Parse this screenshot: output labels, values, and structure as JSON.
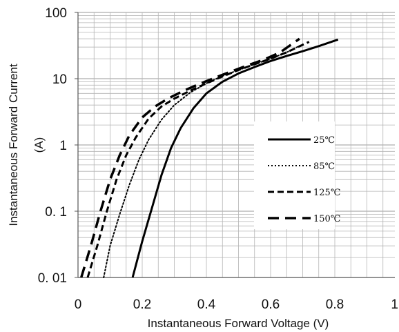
{
  "chart_data": {
    "type": "line",
    "xlabel": "Instantaneous Forward Voltage (V)",
    "ylabel_line1": "Instantaneous Forward Current",
    "ylabel_line2": "(A)",
    "xlim": [
      0,
      1
    ],
    "ylim": [
      0.01,
      100
    ],
    "yscale": "log",
    "grid": true,
    "legend_position": "center-right",
    "x_ticks": [
      {
        "value": 0,
        "label": "0"
      },
      {
        "value": 0.2,
        "label": "0.2"
      },
      {
        "value": 0.4,
        "label": "0.4"
      },
      {
        "value": 0.6,
        "label": "0.6"
      },
      {
        "value": 0.8,
        "label": "0.8"
      },
      {
        "value": 1,
        "label": "1"
      }
    ],
    "y_ticks": [
      {
        "value": 0.01,
        "label": "0. 01"
      },
      {
        "value": 0.1,
        "label": "0. 1"
      },
      {
        "value": 1,
        "label": "1"
      },
      {
        "value": 10,
        "label": "10"
      },
      {
        "value": 100,
        "label": "100"
      }
    ],
    "series": [
      {
        "name": "25℃",
        "style": "solid",
        "x": [
          0.17,
          0.2,
          0.23,
          0.26,
          0.29,
          0.32,
          0.36,
          0.4,
          0.45,
          0.5,
          0.55,
          0.6,
          0.65,
          0.7,
          0.75,
          0.81
        ],
        "y": [
          0.01,
          0.035,
          0.11,
          0.35,
          0.9,
          1.8,
          3.6,
          6.0,
          9.0,
          12.0,
          15.0,
          18.5,
          22.0,
          26.0,
          31.0,
          39.0
        ]
      },
      {
        "name": "85℃",
        "style": "dotted",
        "x": [
          0.08,
          0.1,
          0.13,
          0.16,
          0.19,
          0.22,
          0.26,
          0.3,
          0.35,
          0.4,
          0.45,
          0.5,
          0.55,
          0.6,
          0.65,
          0.7
        ],
        "y": [
          0.01,
          0.03,
          0.09,
          0.25,
          0.6,
          1.2,
          2.4,
          4.0,
          6.2,
          8.5,
          11.0,
          13.5,
          16.5,
          20.0,
          25.0,
          33.0
        ]
      },
      {
        "name": "125℃",
        "style": "dashed",
        "x": [
          0.03,
          0.06,
          0.09,
          0.12,
          0.15,
          0.18,
          0.22,
          0.26,
          0.3,
          0.35,
          0.4,
          0.45,
          0.5,
          0.55,
          0.6,
          0.65,
          0.72
        ],
        "y": [
          0.01,
          0.03,
          0.1,
          0.3,
          0.7,
          1.3,
          2.5,
          3.8,
          5.0,
          6.6,
          8.5,
          10.8,
          13.5,
          16.5,
          20.0,
          25.0,
          36.0
        ]
      },
      {
        "name": "150℃",
        "style": "long-dashed",
        "x": [
          0.01,
          0.04,
          0.07,
          0.1,
          0.13,
          0.16,
          0.2,
          0.24,
          0.28,
          0.33,
          0.38,
          0.43,
          0.48,
          0.53,
          0.58,
          0.63,
          0.69
        ],
        "y": [
          0.01,
          0.03,
          0.1,
          0.3,
          0.7,
          1.4,
          2.6,
          3.8,
          5.0,
          6.6,
          8.4,
          10.5,
          13.0,
          16.0,
          19.5,
          25.0,
          40.0
        ]
      }
    ]
  }
}
